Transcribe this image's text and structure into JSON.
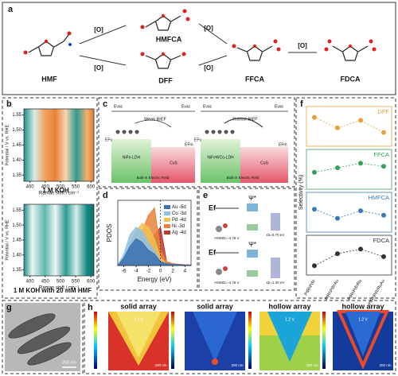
{
  "panel_labels": [
    "a",
    "b",
    "c",
    "d",
    "e",
    "f",
    "g",
    "h"
  ],
  "scheme": {
    "compounds": [
      "HMF",
      "HMFCA",
      "DFF",
      "FFCA",
      "FDCA"
    ],
    "oxidant": [
      "[O]",
      "[O]",
      "[O]",
      "[O]",
      "[O]"
    ]
  },
  "raman": {
    "ylabel": "Potential / V vs. RHE",
    "xlabel": "Raman shift / cm⁻¹",
    "xlim": [
      380,
      610
    ],
    "ylim": [
      1.33,
      1.57
    ],
    "xticks": [
      400,
      450,
      500,
      550,
      600
    ],
    "yticks": [
      1.35,
      {
        "value": 1.4,
        "label": "1.40"
      },
      1.45,
      {
        "value": 1.5,
        "label": "1.50"
      },
      1.55
    ],
    "conditions": [
      "1 M KOH",
      "1 M KOH with 20 mM HMF"
    ]
  },
  "bief": {
    "titles": [
      "Weak BIEF",
      "Robust BIEF"
    ],
    "materials": [
      "NiFe-LDH",
      "NiFeWCo-LDH"
    ],
    "partner": [
      "CuS",
      "CuS"
    ],
    "field": [
      "Built-in Electric Field",
      "Built-in Electric Field"
    ],
    "vacuum": [
      "Evac",
      "Evac",
      "Evac",
      "Evac"
    ],
    "fermi": [
      "EFs",
      "EFm",
      "EFs",
      "EFm"
    ]
  },
  "orbital": {
    "fermi": [
      "Ef",
      "Ef"
    ],
    "psi": [
      "Ψ*",
      "Ψ*"
    ],
    "homo": [
      "HOMO=-4.76 V",
      "HOMO=-4.76 V"
    ],
    "eb": [
      "εb=0.70 eV",
      "εb=1.30 eV"
    ]
  },
  "tem": {
    "scale": "200 nm"
  },
  "fields": {
    "titles": [
      "solid array",
      "solid array",
      "hollow array",
      "hollow array"
    ],
    "potential": [
      "1.2 V",
      "1.2 V",
      "1.2 V"
    ],
    "scale": [
      "200 nm",
      "200 nm",
      "200 nm",
      "200 nm"
    ]
  },
  "chart_data": [
    {
      "type": "area",
      "xlabel": "Energy (eV)",
      "ylabel": "PDOS",
      "x": [
        -7,
        -6,
        -5,
        -4,
        -3,
        -2,
        -1,
        0,
        1,
        2,
        3,
        4,
        5
      ],
      "xlim": [
        -7,
        5
      ],
      "ylim": [
        0,
        17
      ],
      "xticks": [
        -6,
        -4,
        -2,
        0,
        2,
        4
      ],
      "series": [
        {
          "name": "Au -5d",
          "color": "#3a6fb0",
          "values": [
            0,
            2,
            5,
            7,
            6,
            4,
            3,
            1,
            0.5,
            0.3,
            0.2,
            0.1,
            0.1
          ]
        },
        {
          "name": "Cu -3d",
          "color": "#8ec1e6",
          "values": [
            0,
            3,
            8,
            10,
            9,
            6,
            4,
            1,
            0.5,
            0.3,
            0.2,
            0.1,
            0.1
          ]
        },
        {
          "name": "Pd -4d",
          "color": "#f2c14e",
          "values": [
            0,
            2,
            6,
            9,
            11,
            10,
            7,
            2,
            0.5,
            0.3,
            0.2,
            0.1,
            0.1
          ]
        },
        {
          "name": "Ni -3d",
          "color": "#e8823a",
          "values": [
            0,
            1,
            3,
            6,
            9,
            13,
            15,
            4,
            1,
            0.5,
            0.3,
            0.2,
            0.1
          ]
        },
        {
          "name": "Ag -4d",
          "color": "#c0392b",
          "values": [
            0,
            0.5,
            1,
            2,
            3,
            5,
            8,
            10,
            1,
            0.5,
            0.3,
            0.2,
            0.1
          ]
        }
      ],
      "legend": "upper right"
    },
    {
      "type": "line",
      "ylabel": "Selectivity (%)",
      "categories": [
        "PtRhPdIr",
        "PtRhPdIrAu",
        "PtRhPdIrRu",
        "PtRhPdIrRuAu"
      ],
      "ylim": [
        0,
        100
      ],
      "series": [
        {
          "name": "DFF",
          "color": "#e8a13a",
          "values": [
            80,
            45,
            70,
            30
          ]
        },
        {
          "name": "FFCA",
          "color": "#3aa05a",
          "values": [
            40,
            55,
            70,
            60
          ]
        },
        {
          "name": "HMFCA",
          "color": "#3a7ab8",
          "values": [
            60,
            30,
            55,
            40
          ]
        },
        {
          "name": "FDCA",
          "color": "#333333",
          "values": [
            15,
            55,
            70,
            45
          ]
        }
      ]
    }
  ]
}
